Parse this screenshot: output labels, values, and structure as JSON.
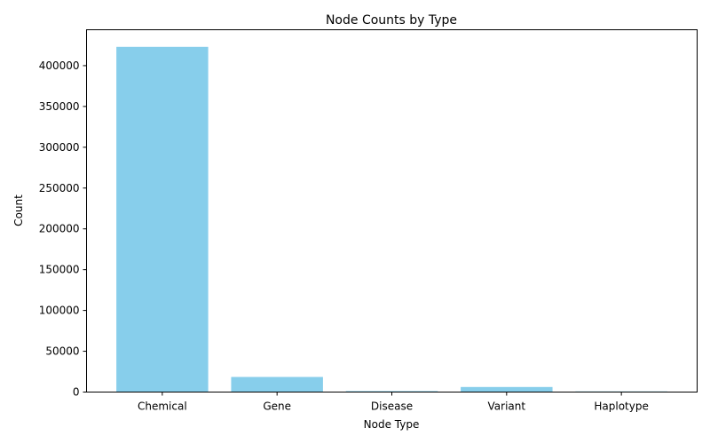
{
  "chart_data": {
    "type": "bar",
    "title": "Node Counts by Type",
    "xlabel": "Node Type",
    "ylabel": "Count",
    "categories": [
      "Chemical",
      "Gene",
      "Disease",
      "Variant",
      "Haplotype"
    ],
    "values": [
      423000,
      18500,
      1200,
      6200,
      800
    ],
    "ylim": [
      0,
      444000
    ],
    "yticks": [
      0,
      50000,
      100000,
      150000,
      200000,
      250000,
      300000,
      350000,
      400000
    ],
    "bar_color": "#87ceeb",
    "grid": false,
    "legend": "none"
  }
}
